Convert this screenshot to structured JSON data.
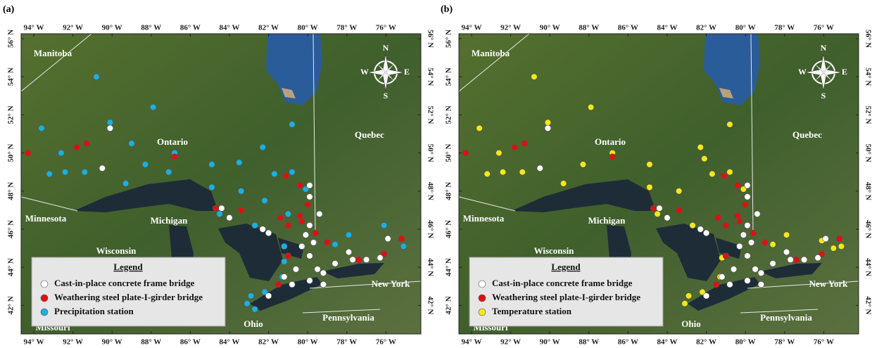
{
  "axes": {
    "lon_ticks": [
      {
        "value": -94,
        "label": "94° W"
      },
      {
        "value": -92,
        "label": "92° W"
      },
      {
        "value": -90,
        "label": "90° W"
      },
      {
        "value": -88,
        "label": "88° W"
      },
      {
        "value": -86,
        "label": "86° W"
      },
      {
        "value": -84,
        "label": "84° W"
      },
      {
        "value": -82,
        "label": "82° W"
      },
      {
        "value": -80,
        "label": "80° W"
      },
      {
        "value": -78,
        "label": "78° W"
      },
      {
        "value": -76,
        "label": "76° W"
      }
    ],
    "lat_ticks": [
      {
        "value": 56,
        "label": "56° N"
      },
      {
        "value": 54,
        "label": "54° N"
      },
      {
        "value": 52,
        "label": "52° N"
      },
      {
        "value": 50,
        "label": "50° N"
      },
      {
        "value": 48,
        "label": "48° N"
      },
      {
        "value": 46,
        "label": "46° N"
      },
      {
        "value": 44,
        "label": "44° N"
      },
      {
        "value": 42,
        "label": "42° N"
      }
    ]
  },
  "regions": [
    "Manitoba",
    "Ontario",
    "Quebec",
    "Minnesota",
    "Michigan",
    "Wisconsin",
    "New York",
    "Pennsylvania",
    "Ohio",
    "Missouri"
  ],
  "compass": [
    "N",
    "E",
    "S",
    "W"
  ],
  "bridges": {
    "concrete": [
      [
        -90.1,
        51.3
      ],
      [
        -90.5,
        49.2
      ],
      [
        -79.9,
        48.3
      ],
      [
        -79.9,
        47.7
      ],
      [
        -84.4,
        47.1
      ],
      [
        -84.0,
        46.6
      ],
      [
        -82.3,
        46.0
      ],
      [
        -82.0,
        45.8
      ],
      [
        -79.9,
        46.2
      ],
      [
        -79.4,
        46.8
      ],
      [
        -80.1,
        45.7
      ],
      [
        -79.7,
        45.3
      ],
      [
        -80.3,
        45.1
      ],
      [
        -79.9,
        44.6
      ],
      [
        -80.6,
        43.9
      ],
      [
        -79.5,
        43.9
      ],
      [
        -78.6,
        44.2
      ],
      [
        -77.7,
        44.4
      ],
      [
        -77.0,
        44.4
      ],
      [
        -76.3,
        44.5
      ],
      [
        -75.9,
        45.5
      ],
      [
        -80.8,
        43.1
      ],
      [
        -79.9,
        43.3
      ],
      [
        -79.2,
        43.1
      ],
      [
        -82.0,
        42.5
      ],
      [
        -77.9,
        44.8
      ],
      [
        -81.2,
        43.5
      ],
      [
        -79.2,
        43.7
      ]
    ],
    "weathering": [
      [
        -94.3,
        50.0
      ],
      [
        -91.8,
        50.3
      ],
      [
        -91.3,
        50.5
      ],
      [
        -86.8,
        49.8
      ],
      [
        -84.7,
        47.1
      ],
      [
        -83.4,
        47.0
      ],
      [
        -81.1,
        48.8
      ],
      [
        -80.4,
        48.3
      ],
      [
        -80.0,
        47.3
      ],
      [
        -81.4,
        46.6
      ],
      [
        -81.0,
        46.2
      ],
      [
        -80.4,
        46.7
      ],
      [
        -80.3,
        46.4
      ],
      [
        -79.6,
        45.8
      ],
      [
        -79.0,
        45.3
      ],
      [
        -81.5,
        43.1
      ],
      [
        -81.0,
        44.6
      ],
      [
        -77.4,
        44.4
      ],
      [
        -76.1,
        44.7
      ],
      [
        -75.2,
        45.5
      ]
    ]
  },
  "panels": [
    {
      "label": "(a)",
      "legend": {
        "title": "Legend",
        "items": [
          {
            "label": "Cast-in-place concrete frame bridge",
            "color": "#ffffff"
          },
          {
            "label": "Weathering steel plate-I-girder bridge",
            "color": "#e01010"
          },
          {
            "label": "Precipitation station",
            "color": "#1ab0e0"
          }
        ]
      },
      "stations": [
        [
          -90.8,
          54.0
        ],
        [
          -93.6,
          51.3
        ],
        [
          -90.1,
          51.6
        ],
        [
          -87.9,
          52.4
        ],
        [
          -89.0,
          50.5
        ],
        [
          -92.6,
          50.0
        ],
        [
          -86.8,
          50.0
        ],
        [
          -93.2,
          48.9
        ],
        [
          -92.4,
          49.0
        ],
        [
          -91.4,
          49.0
        ],
        [
          -89.3,
          48.4
        ],
        [
          -88.3,
          49.4
        ],
        [
          -87.1,
          49.0
        ],
        [
          -84.9,
          49.4
        ],
        [
          -83.5,
          49.5
        ],
        [
          -82.3,
          50.3
        ],
        [
          -80.8,
          51.5
        ],
        [
          -84.9,
          48.2
        ],
        [
          -83.4,
          48.0
        ],
        [
          -82.2,
          47.5
        ],
        [
          -81.7,
          48.9
        ],
        [
          -80.8,
          49.0
        ],
        [
          -80.1,
          48.1
        ],
        [
          -84.5,
          46.8
        ],
        [
          -81.0,
          46.8
        ],
        [
          -82.7,
          46.2
        ],
        [
          -77.9,
          45.7
        ],
        [
          -78.6,
          45.2
        ],
        [
          -81.2,
          45.1
        ],
        [
          -81.2,
          44.3
        ],
        [
          -81.3,
          43.5
        ],
        [
          -82.2,
          42.7
        ],
        [
          -82.9,
          42.5
        ],
        [
          -83.1,
          42.1
        ],
        [
          -82.7,
          41.8
        ],
        [
          -76.1,
          46.2
        ],
        [
          -75.1,
          45.1
        ]
      ]
    },
    {
      "label": "(b)",
      "legend": {
        "title": "Legend",
        "items": [
          {
            "label": "Cast-in-place concrete frame bridge",
            "color": "#ffffff"
          },
          {
            "label": "Weathering steel plate-I-girder bridge",
            "color": "#e01010"
          },
          {
            "label": "Temperature station",
            "color": "#f5e81a"
          }
        ]
      },
      "stations": [
        [
          -90.8,
          54.0
        ],
        [
          -93.6,
          51.3
        ],
        [
          -90.1,
          51.6
        ],
        [
          -87.9,
          52.4
        ],
        [
          -92.6,
          50.0
        ],
        [
          -86.8,
          50.0
        ],
        [
          -93.2,
          48.9
        ],
        [
          -92.4,
          49.0
        ],
        [
          -91.4,
          49.0
        ],
        [
          -89.3,
          48.4
        ],
        [
          -88.3,
          49.4
        ],
        [
          -84.9,
          49.4
        ],
        [
          -82.3,
          50.3
        ],
        [
          -82.1,
          49.7
        ],
        [
          -80.8,
          51.5
        ],
        [
          -84.9,
          48.2
        ],
        [
          -83.4,
          48.0
        ],
        [
          -81.7,
          48.9
        ],
        [
          -80.8,
          49.0
        ],
        [
          -80.1,
          48.1
        ],
        [
          -84.5,
          46.8
        ],
        [
          -82.7,
          46.2
        ],
        [
          -77.9,
          45.7
        ],
        [
          -78.6,
          45.2
        ],
        [
          -81.2,
          44.5
        ],
        [
          -81.3,
          43.5
        ],
        [
          -82.2,
          42.7
        ],
        [
          -82.9,
          42.5
        ],
        [
          -83.1,
          42.1
        ],
        [
          -76.1,
          45.4
        ],
        [
          -75.1,
          45.1
        ],
        [
          -75.5,
          45.0
        ]
      ]
    }
  ]
}
